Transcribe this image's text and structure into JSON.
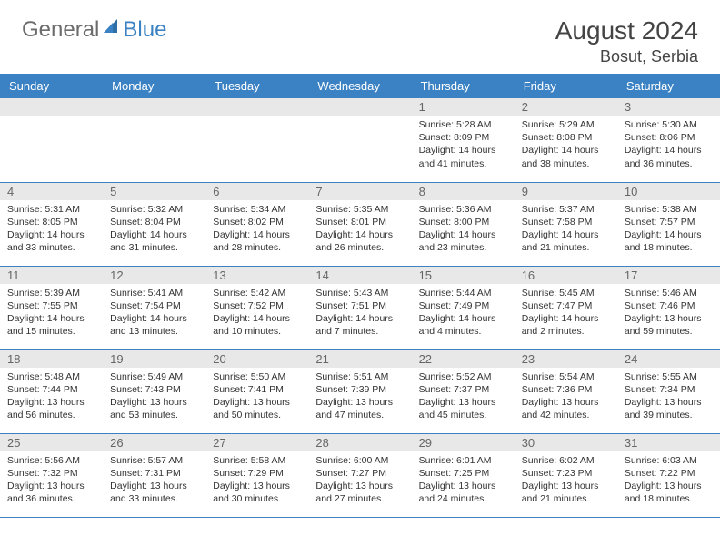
{
  "brand": {
    "part1": "General",
    "part2": "Blue"
  },
  "title": "August 2024",
  "location": "Bosut, Serbia",
  "colors": {
    "header_bg": "#3b82c4",
    "header_fg": "#ffffff",
    "daynum_bg": "#e8e8e8",
    "border": "#3b82c4"
  },
  "dayNames": [
    "Sunday",
    "Monday",
    "Tuesday",
    "Wednesday",
    "Thursday",
    "Friday",
    "Saturday"
  ],
  "weeks": [
    [
      {
        "n": "",
        "sr": "",
        "ss": "",
        "dl": ""
      },
      {
        "n": "",
        "sr": "",
        "ss": "",
        "dl": ""
      },
      {
        "n": "",
        "sr": "",
        "ss": "",
        "dl": ""
      },
      {
        "n": "",
        "sr": "",
        "ss": "",
        "dl": ""
      },
      {
        "n": "1",
        "sr": "Sunrise: 5:28 AM",
        "ss": "Sunset: 8:09 PM",
        "dl": "Daylight: 14 hours and 41 minutes."
      },
      {
        "n": "2",
        "sr": "Sunrise: 5:29 AM",
        "ss": "Sunset: 8:08 PM",
        "dl": "Daylight: 14 hours and 38 minutes."
      },
      {
        "n": "3",
        "sr": "Sunrise: 5:30 AM",
        "ss": "Sunset: 8:06 PM",
        "dl": "Daylight: 14 hours and 36 minutes."
      }
    ],
    [
      {
        "n": "4",
        "sr": "Sunrise: 5:31 AM",
        "ss": "Sunset: 8:05 PM",
        "dl": "Daylight: 14 hours and 33 minutes."
      },
      {
        "n": "5",
        "sr": "Sunrise: 5:32 AM",
        "ss": "Sunset: 8:04 PM",
        "dl": "Daylight: 14 hours and 31 minutes."
      },
      {
        "n": "6",
        "sr": "Sunrise: 5:34 AM",
        "ss": "Sunset: 8:02 PM",
        "dl": "Daylight: 14 hours and 28 minutes."
      },
      {
        "n": "7",
        "sr": "Sunrise: 5:35 AM",
        "ss": "Sunset: 8:01 PM",
        "dl": "Daylight: 14 hours and 26 minutes."
      },
      {
        "n": "8",
        "sr": "Sunrise: 5:36 AM",
        "ss": "Sunset: 8:00 PM",
        "dl": "Daylight: 14 hours and 23 minutes."
      },
      {
        "n": "9",
        "sr": "Sunrise: 5:37 AM",
        "ss": "Sunset: 7:58 PM",
        "dl": "Daylight: 14 hours and 21 minutes."
      },
      {
        "n": "10",
        "sr": "Sunrise: 5:38 AM",
        "ss": "Sunset: 7:57 PM",
        "dl": "Daylight: 14 hours and 18 minutes."
      }
    ],
    [
      {
        "n": "11",
        "sr": "Sunrise: 5:39 AM",
        "ss": "Sunset: 7:55 PM",
        "dl": "Daylight: 14 hours and 15 minutes."
      },
      {
        "n": "12",
        "sr": "Sunrise: 5:41 AM",
        "ss": "Sunset: 7:54 PM",
        "dl": "Daylight: 14 hours and 13 minutes."
      },
      {
        "n": "13",
        "sr": "Sunrise: 5:42 AM",
        "ss": "Sunset: 7:52 PM",
        "dl": "Daylight: 14 hours and 10 minutes."
      },
      {
        "n": "14",
        "sr": "Sunrise: 5:43 AM",
        "ss": "Sunset: 7:51 PM",
        "dl": "Daylight: 14 hours and 7 minutes."
      },
      {
        "n": "15",
        "sr": "Sunrise: 5:44 AM",
        "ss": "Sunset: 7:49 PM",
        "dl": "Daylight: 14 hours and 4 minutes."
      },
      {
        "n": "16",
        "sr": "Sunrise: 5:45 AM",
        "ss": "Sunset: 7:47 PM",
        "dl": "Daylight: 14 hours and 2 minutes."
      },
      {
        "n": "17",
        "sr": "Sunrise: 5:46 AM",
        "ss": "Sunset: 7:46 PM",
        "dl": "Daylight: 13 hours and 59 minutes."
      }
    ],
    [
      {
        "n": "18",
        "sr": "Sunrise: 5:48 AM",
        "ss": "Sunset: 7:44 PM",
        "dl": "Daylight: 13 hours and 56 minutes."
      },
      {
        "n": "19",
        "sr": "Sunrise: 5:49 AM",
        "ss": "Sunset: 7:43 PM",
        "dl": "Daylight: 13 hours and 53 minutes."
      },
      {
        "n": "20",
        "sr": "Sunrise: 5:50 AM",
        "ss": "Sunset: 7:41 PM",
        "dl": "Daylight: 13 hours and 50 minutes."
      },
      {
        "n": "21",
        "sr": "Sunrise: 5:51 AM",
        "ss": "Sunset: 7:39 PM",
        "dl": "Daylight: 13 hours and 47 minutes."
      },
      {
        "n": "22",
        "sr": "Sunrise: 5:52 AM",
        "ss": "Sunset: 7:37 PM",
        "dl": "Daylight: 13 hours and 45 minutes."
      },
      {
        "n": "23",
        "sr": "Sunrise: 5:54 AM",
        "ss": "Sunset: 7:36 PM",
        "dl": "Daylight: 13 hours and 42 minutes."
      },
      {
        "n": "24",
        "sr": "Sunrise: 5:55 AM",
        "ss": "Sunset: 7:34 PM",
        "dl": "Daylight: 13 hours and 39 minutes."
      }
    ],
    [
      {
        "n": "25",
        "sr": "Sunrise: 5:56 AM",
        "ss": "Sunset: 7:32 PM",
        "dl": "Daylight: 13 hours and 36 minutes."
      },
      {
        "n": "26",
        "sr": "Sunrise: 5:57 AM",
        "ss": "Sunset: 7:31 PM",
        "dl": "Daylight: 13 hours and 33 minutes."
      },
      {
        "n": "27",
        "sr": "Sunrise: 5:58 AM",
        "ss": "Sunset: 7:29 PM",
        "dl": "Daylight: 13 hours and 30 minutes."
      },
      {
        "n": "28",
        "sr": "Sunrise: 6:00 AM",
        "ss": "Sunset: 7:27 PM",
        "dl": "Daylight: 13 hours and 27 minutes."
      },
      {
        "n": "29",
        "sr": "Sunrise: 6:01 AM",
        "ss": "Sunset: 7:25 PM",
        "dl": "Daylight: 13 hours and 24 minutes."
      },
      {
        "n": "30",
        "sr": "Sunrise: 6:02 AM",
        "ss": "Sunset: 7:23 PM",
        "dl": "Daylight: 13 hours and 21 minutes."
      },
      {
        "n": "31",
        "sr": "Sunrise: 6:03 AM",
        "ss": "Sunset: 7:22 PM",
        "dl": "Daylight: 13 hours and 18 minutes."
      }
    ]
  ]
}
